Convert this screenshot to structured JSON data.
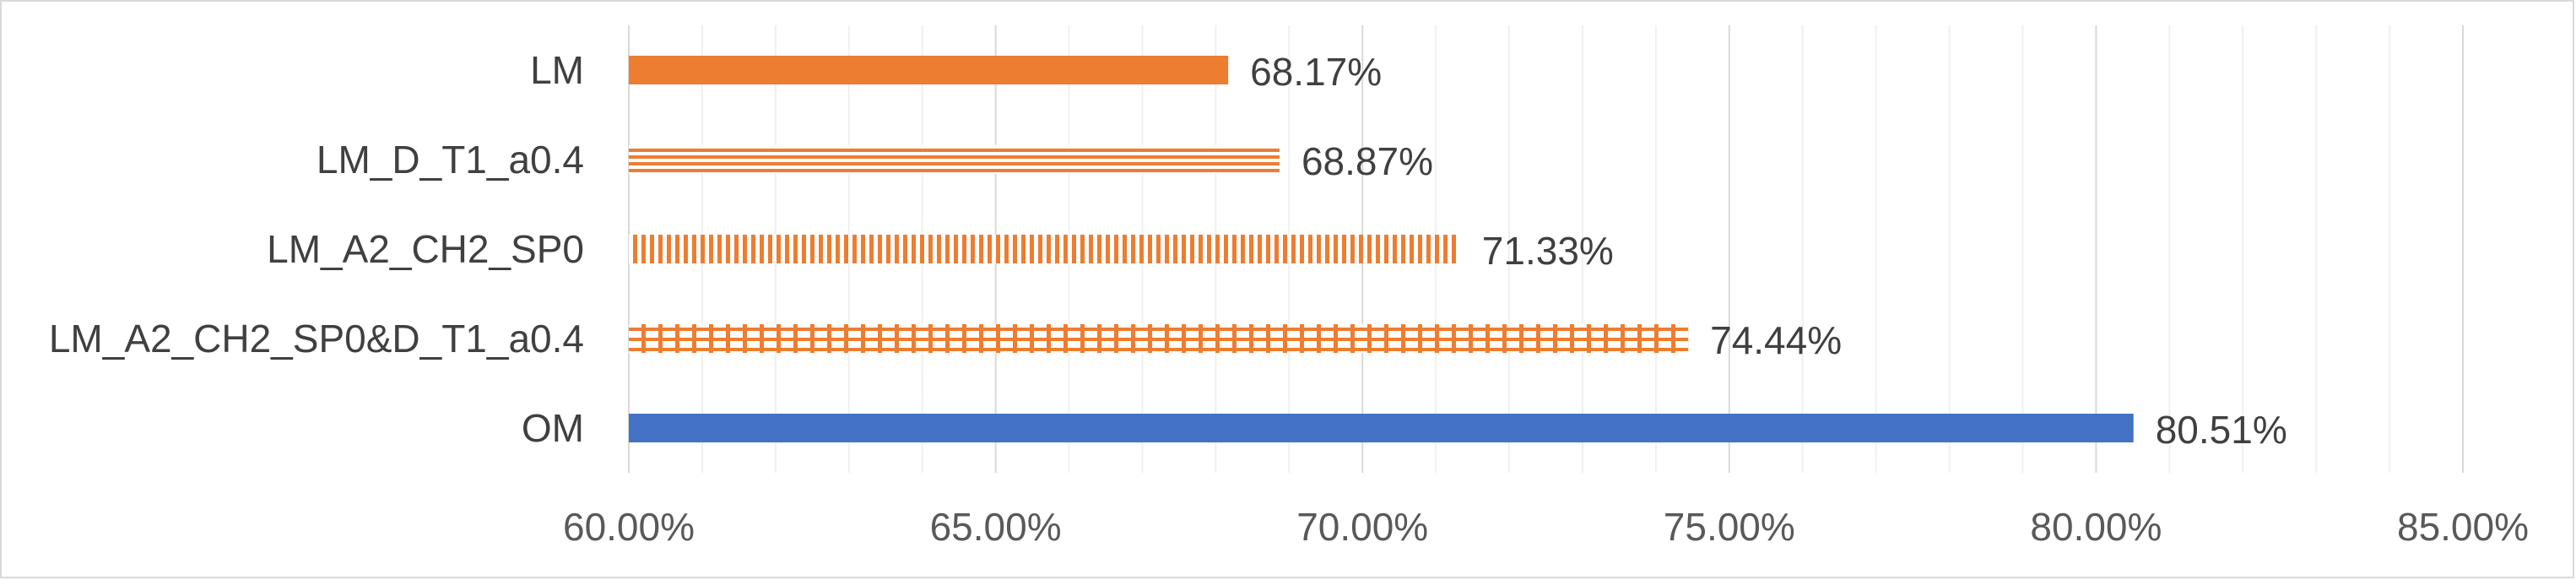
{
  "chart_data": {
    "type": "bar",
    "orientation": "horizontal",
    "categories": [
      "LM",
      "LM_D_T1_a0.4",
      "LM_A2_CH2_SP0",
      "LM_A2_CH2_SP0&D_T1_a0.4",
      "OM"
    ],
    "values": [
      68.17,
      68.87,
      71.33,
      74.44,
      80.51
    ],
    "value_labels": [
      "68.17%",
      "68.87%",
      "71.33%",
      "74.44%",
      "80.51%"
    ],
    "bar_styles": [
      "solid",
      "horizontal-lines",
      "vertical-lines",
      "grid",
      "solid"
    ],
    "bar_colors": [
      "#ed7d31",
      "#ed7d31",
      "#ed7d31",
      "#ed7d31",
      "#4472c4"
    ],
    "xlim": [
      60,
      85
    ],
    "x_major_step": 5,
    "x_minor_step": 1,
    "x_tick_labels": [
      "60.00%",
      "65.00%",
      "70.00%",
      "75.00%",
      "80.00%",
      "85.00%"
    ],
    "grid": true,
    "legend": "none",
    "title": "",
    "xlabel": "",
    "ylabel": ""
  }
}
